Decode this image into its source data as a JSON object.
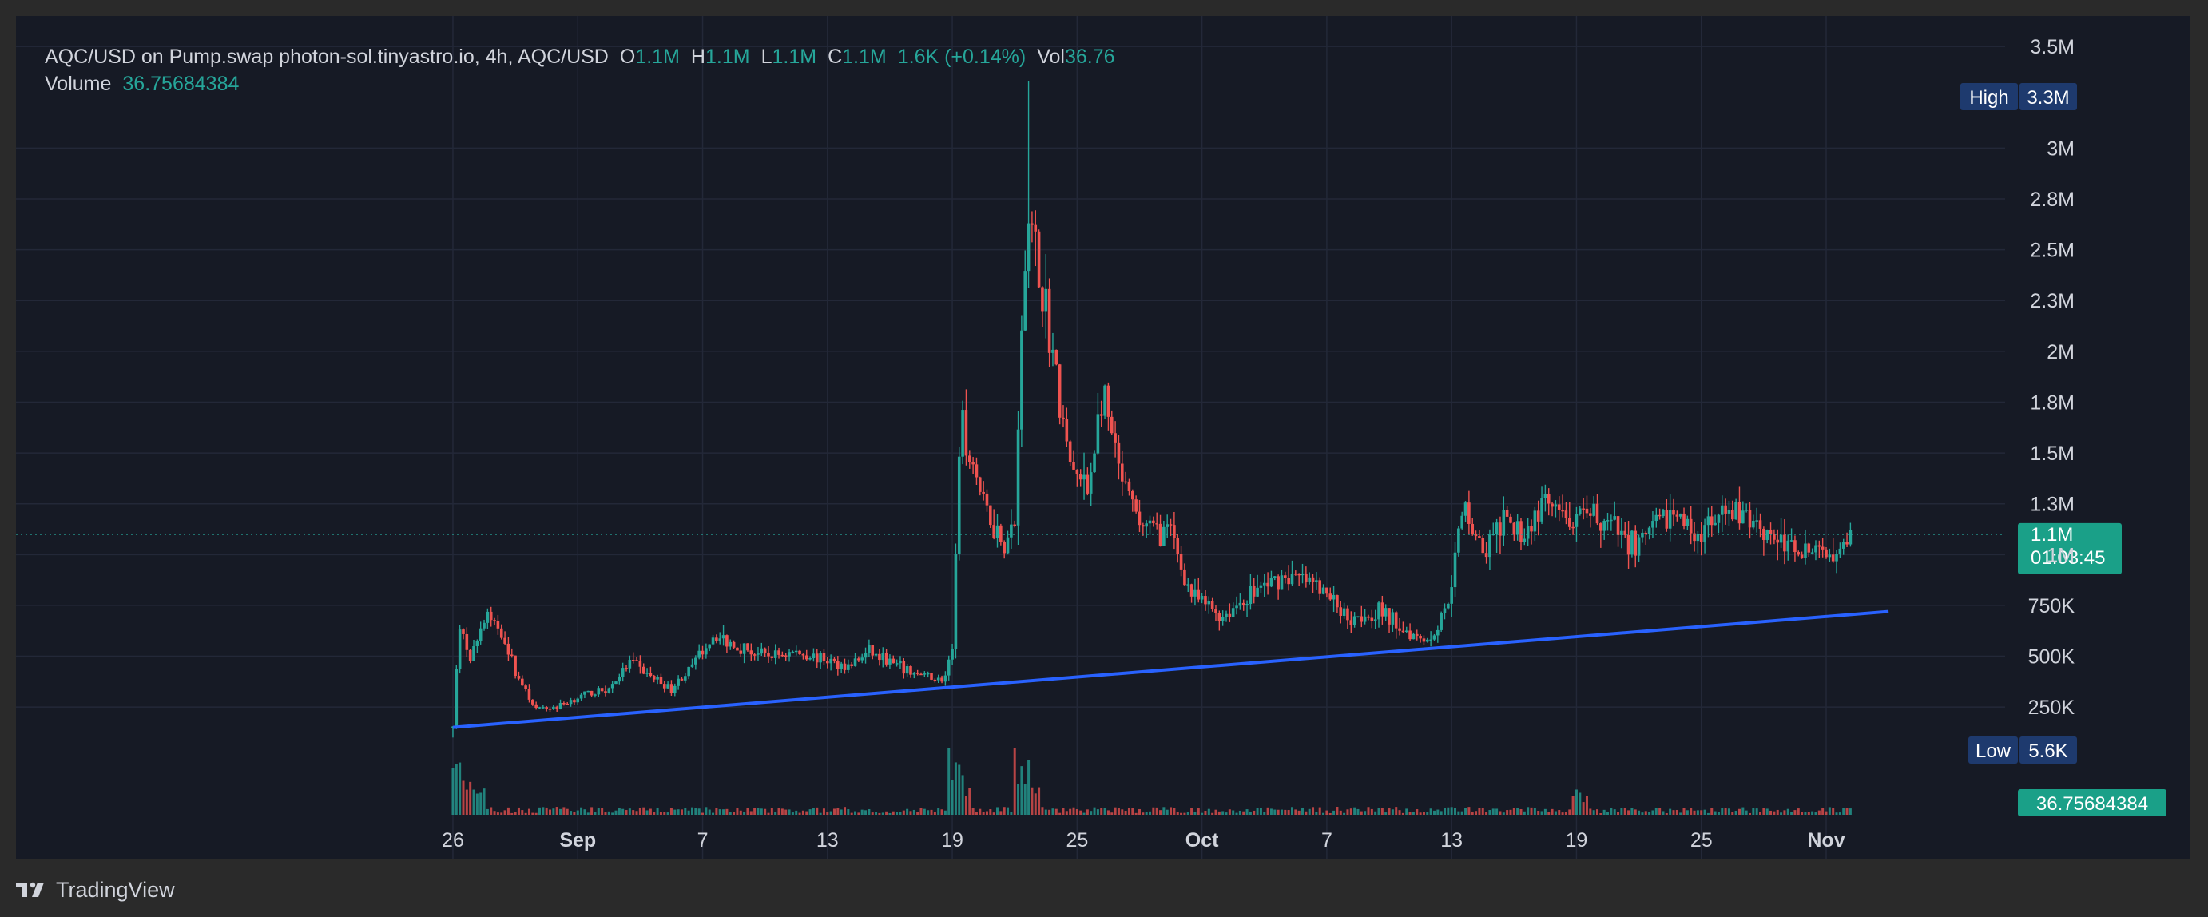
{
  "legend": {
    "symbol_line": "AQC/USD on Pump.swap photon-sol.tinyastro.io, 4h, AQC/USD",
    "o_label": "O",
    "o_value": "1.1M",
    "h_label": "H",
    "h_value": "1.1M",
    "l_label": "L",
    "l_value": "1.1M",
    "c_label": "C",
    "c_value": "1.1M",
    "change": "1.6K (+0.14%)",
    "vol_label": "Vol",
    "vol_value": "36.76",
    "volume_label": "Volume",
    "volume_value": "36.75684384"
  },
  "footer": {
    "brand": "TradingView"
  },
  "colors": {
    "background": "#161a25",
    "frame": "#2a2a2a",
    "up": "#26a69a",
    "down": "#ef5350",
    "trendline": "#2962ff",
    "badge_blue": "#1e3a6e",
    "text": "#d1d4dc"
  },
  "chart_data": {
    "type": "candlestick",
    "timeframe": "4h",
    "symbol": "AQC/USD",
    "y_axis": {
      "ticks": [
        "250K",
        "500K",
        "750K",
        "1M",
        "1.3M",
        "1.5M",
        "1.8M",
        "2M",
        "2.3M",
        "2.5M",
        "2.8M",
        "3M",
        "3.5M"
      ],
      "tick_values": [
        250000,
        500000,
        750000,
        1000000,
        1250000,
        1500000,
        1750000,
        2000000,
        2250000,
        2500000,
        2750000,
        3000000,
        3500000
      ],
      "range": [
        -500000,
        3650000
      ]
    },
    "x_axis": {
      "ticks": [
        "26",
        "Sep",
        "7",
        "13",
        "19",
        "25",
        "Oct",
        "7",
        "13",
        "19",
        "25",
        "Nov"
      ],
      "tick_days": [
        0,
        6,
        12,
        18,
        24,
        30,
        36,
        42,
        48,
        54,
        60,
        66
      ],
      "bold": [
        false,
        true,
        false,
        false,
        false,
        false,
        true,
        false,
        false,
        false,
        false,
        true
      ],
      "range_days": [
        -21,
        74.6
      ]
    },
    "price_waypoints": [
      {
        "day": 0,
        "price": 150000
      },
      {
        "day": 0.3,
        "price": 650000
      },
      {
        "day": 0.8,
        "price": 480000
      },
      {
        "day": 1.6,
        "price": 700000
      },
      {
        "day": 2.4,
        "price": 620000
      },
      {
        "day": 3,
        "price": 420000
      },
      {
        "day": 4,
        "price": 240000
      },
      {
        "day": 5,
        "price": 250000
      },
      {
        "day": 6,
        "price": 300000
      },
      {
        "day": 7.5,
        "price": 340000
      },
      {
        "day": 8.5,
        "price": 470000
      },
      {
        "day": 9.5,
        "price": 400000
      },
      {
        "day": 10.5,
        "price": 340000
      },
      {
        "day": 11.5,
        "price": 450000
      },
      {
        "day": 12.5,
        "price": 600000
      },
      {
        "day": 13.5,
        "price": 560000
      },
      {
        "day": 15,
        "price": 500000
      },
      {
        "day": 16.5,
        "price": 520000
      },
      {
        "day": 18,
        "price": 480000
      },
      {
        "day": 19,
        "price": 450000
      },
      {
        "day": 20,
        "price": 520000
      },
      {
        "day": 21,
        "price": 470000
      },
      {
        "day": 22,
        "price": 420000
      },
      {
        "day": 23.6,
        "price": 380000
      },
      {
        "day": 24,
        "price": 520000
      },
      {
        "day": 24.4,
        "price": 1700000
      },
      {
        "day": 25.5,
        "price": 1250000
      },
      {
        "day": 26.5,
        "price": 1050000
      },
      {
        "day": 27,
        "price": 1150000
      },
      {
        "day": 27.6,
        "price": 2700000
      },
      {
        "day": 28.6,
        "price": 2150000
      },
      {
        "day": 29.6,
        "price": 1450000
      },
      {
        "day": 30.5,
        "price": 1300000
      },
      {
        "day": 31.2,
        "price": 1800000
      },
      {
        "day": 32,
        "price": 1400000
      },
      {
        "day": 33,
        "price": 1150000
      },
      {
        "day": 34.5,
        "price": 1100000
      },
      {
        "day": 35.5,
        "price": 800000
      },
      {
        "day": 37,
        "price": 700000
      },
      {
        "day": 38.5,
        "price": 820000
      },
      {
        "day": 40,
        "price": 900000
      },
      {
        "day": 41.5,
        "price": 850000
      },
      {
        "day": 43,
        "price": 700000
      },
      {
        "day": 44.5,
        "price": 720000
      },
      {
        "day": 46,
        "price": 620000
      },
      {
        "day": 47,
        "price": 580000
      },
      {
        "day": 47.8,
        "price": 760000
      },
      {
        "day": 48.6,
        "price": 1250000
      },
      {
        "day": 49.5,
        "price": 1000000
      },
      {
        "day": 50.5,
        "price": 1150000
      },
      {
        "day": 51.5,
        "price": 1100000
      },
      {
        "day": 52.5,
        "price": 1250000
      },
      {
        "day": 53.5,
        "price": 1150000
      },
      {
        "day": 55,
        "price": 1200000
      },
      {
        "day": 56,
        "price": 1100000
      },
      {
        "day": 57,
        "price": 1050000
      },
      {
        "day": 58.5,
        "price": 1200000
      },
      {
        "day": 60,
        "price": 1100000
      },
      {
        "day": 61.5,
        "price": 1200000
      },
      {
        "day": 62.5,
        "price": 1180000
      },
      {
        "day": 64,
        "price": 1050000
      },
      {
        "day": 65.5,
        "price": 1000000
      },
      {
        "day": 66.5,
        "price": 1050000
      },
      {
        "day": 67.2,
        "price": 1100000
      }
    ],
    "trendline": {
      "start": {
        "day": 0,
        "price": 150000
      },
      "end": {
        "day": 69,
        "price": 720000
      }
    },
    "last_price": {
      "value": 1100000,
      "label": "1.1M",
      "countdown": "01:03:45"
    },
    "high_badge": {
      "label": "High",
      "value": "3.3M",
      "price": 3330000
    },
    "low_badge": {
      "label": "Low",
      "value": "5.6K",
      "price": 5600
    },
    "volume_badge": {
      "value": "36.75684384"
    },
    "volume_spikes": [
      {
        "day": 0.1,
        "height": 0.85
      },
      {
        "day": 0.5,
        "height": 0.55
      },
      {
        "day": 1.2,
        "height": 0.45
      },
      {
        "day": 24.1,
        "height": 0.9
      },
      {
        "day": 24.6,
        "height": 0.55
      },
      {
        "day": 27.3,
        "height": 1.0
      },
      {
        "day": 27.8,
        "height": 0.45
      },
      {
        "day": 54.1,
        "height": 0.35
      }
    ]
  }
}
